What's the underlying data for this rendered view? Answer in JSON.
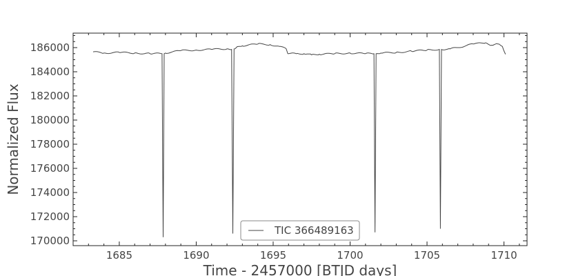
{
  "chart_data": {
    "type": "line",
    "title": "",
    "xlabel": "Time - 2457000 [BTJD days]",
    "ylabel": "Normalized Flux",
    "xlim": [
      1682.0,
      1711.5
    ],
    "ylim": [
      169600,
      187200
    ],
    "xticks": [
      1685,
      1690,
      1695,
      1700,
      1705,
      1710
    ],
    "yticks": [
      170000,
      172000,
      174000,
      176000,
      178000,
      180000,
      182000,
      184000,
      186000
    ],
    "grid": false,
    "legend": {
      "position": "bottom-center"
    },
    "series": [
      {
        "name": "TIC 366489163",
        "color": "#444444",
        "x": [
          1683.3,
          1684.0,
          1685.0,
          1686.0,
          1687.0,
          1687.78,
          1687.85,
          1687.92,
          1688.0,
          1689.0,
          1690.0,
          1691.0,
          1692.0,
          1692.3,
          1692.38,
          1692.46,
          1692.6,
          1693.0,
          1694.0,
          1694.8,
          1695.4,
          1695.85,
          1695.95,
          1696.5,
          1697.0,
          1697.5,
          1698.0,
          1699.0,
          1700.0,
          1701.0,
          1701.55,
          1701.62,
          1701.69,
          1702.0,
          1703.0,
          1704.0,
          1705.0,
          1705.8,
          1705.87,
          1705.94,
          1706.5,
          1707.0,
          1708.0,
          1708.8,
          1709.2,
          1709.6,
          1709.9,
          1710.1
        ],
        "y": [
          185650,
          185550,
          185600,
          185550,
          185500,
          185500,
          170300,
          185500,
          185550,
          185750,
          185800,
          185850,
          185900,
          185850,
          170600,
          185900,
          186000,
          186150,
          186300,
          186250,
          186100,
          185900,
          185500,
          185500,
          185500,
          185400,
          185450,
          185500,
          185550,
          185500,
          185500,
          170700,
          185500,
          185550,
          185600,
          185700,
          185800,
          185850,
          171000,
          185850,
          185900,
          186000,
          186300,
          186400,
          186200,
          186300,
          186100,
          185450
        ]
      }
    ]
  }
}
